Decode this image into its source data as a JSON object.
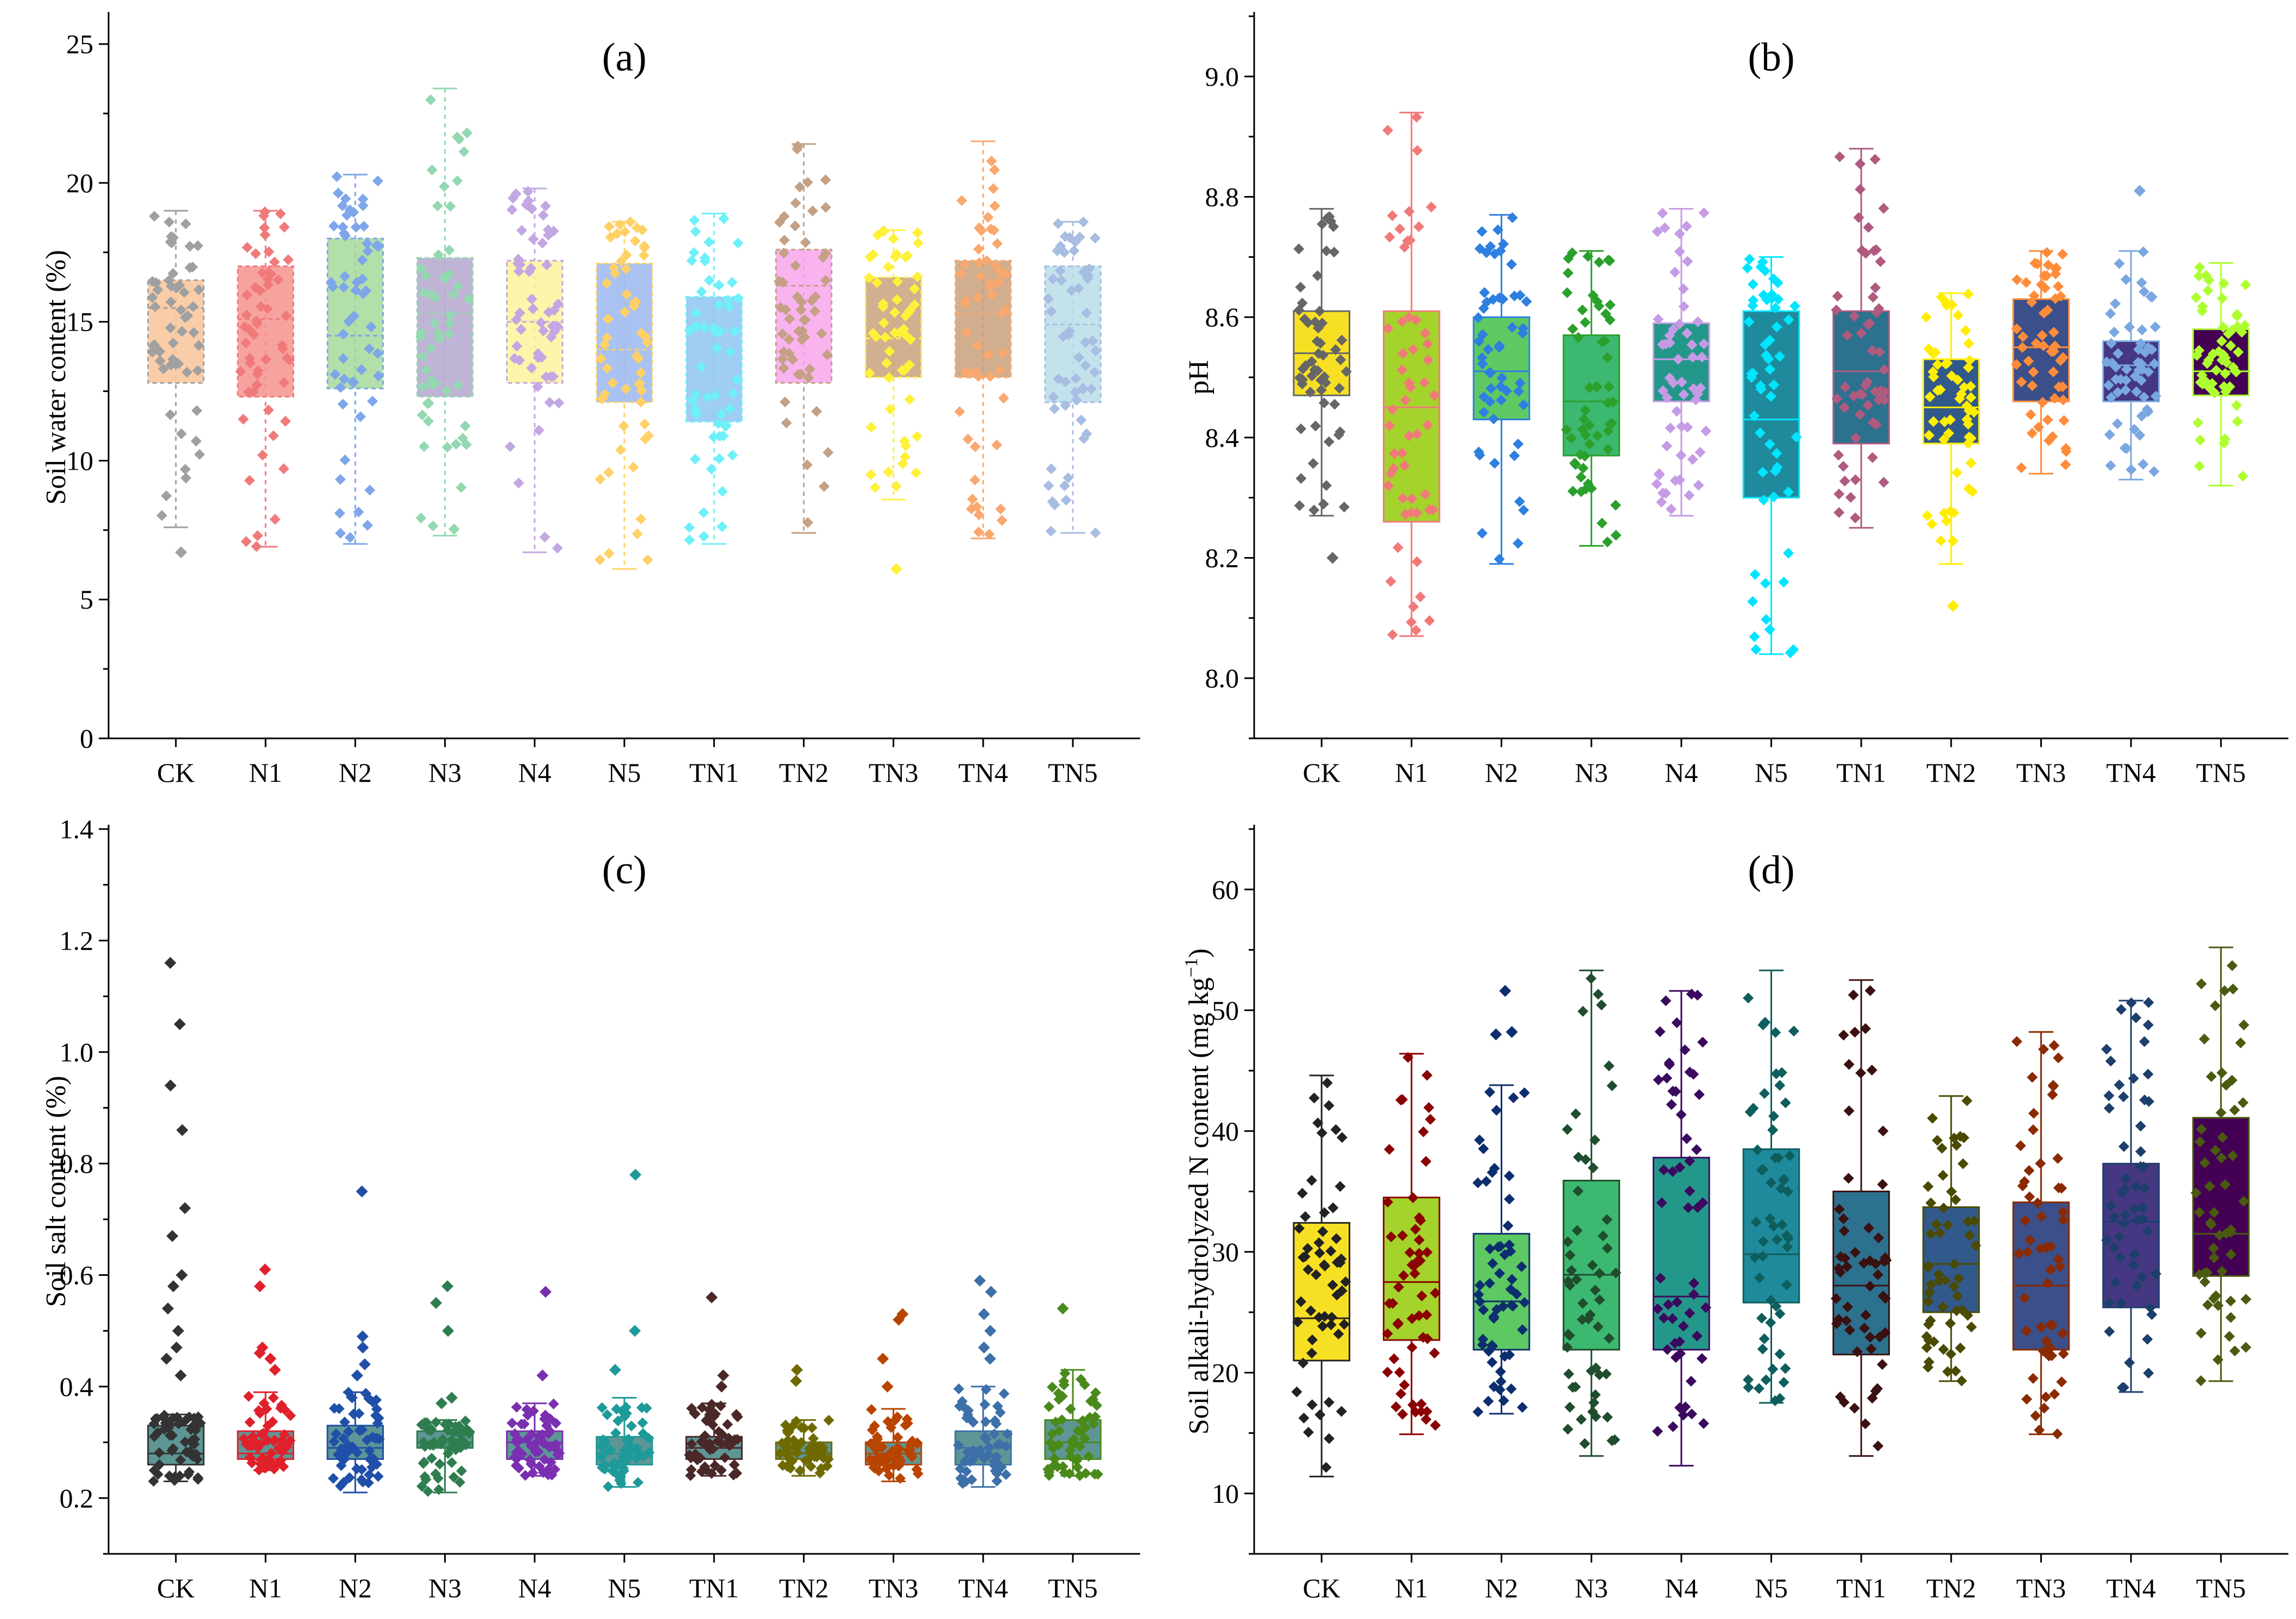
{
  "chart_data": [
    {
      "type": "box",
      "panel_label": "(a)",
      "ylabel": "Soil water content (%)",
      "ylim": [
        0,
        26
      ],
      "yticks": [
        0,
        5,
        10,
        15,
        20,
        25
      ],
      "ytick_labels": [
        "0",
        "5",
        "10",
        "15",
        "20",
        "25"
      ],
      "categories": [
        "CK",
        "N1",
        "N2",
        "N3",
        "N4",
        "N5",
        "TN1",
        "TN2",
        "TN3",
        "TN4",
        "TN5"
      ],
      "colors": [
        "#f9c49a",
        "#f5938f",
        "#a6d99a",
        "#b4a7cf",
        "#fbf39b",
        "#9ab7ef",
        "#8ec4f2",
        "#f8a6ec",
        "#c9a27e",
        "#c8a07a",
        "#b9dde9"
      ],
      "point_colors": [
        "#a0a0a0",
        "#f07a7a",
        "#7ea6ea",
        "#93d8b0",
        "#c3a7e2",
        "#ffd166",
        "#6ef0f8",
        "#c4a084",
        "#fff03a",
        "#f9a86f",
        "#a7bde2"
      ],
      "q1": [
        12.8,
        12.3,
        12.6,
        12.3,
        12.8,
        12.1,
        11.4,
        12.8,
        13.0,
        13.0,
        12.1
      ],
      "median": [
        15.5,
        15.1,
        14.5,
        15.3,
        15.0,
        14.0,
        14.7,
        16.3,
        14.4,
        15.3,
        14.9
      ],
      "q3": [
        16.5,
        17.0,
        18.0,
        17.3,
        17.2,
        17.1,
        15.9,
        17.6,
        16.6,
        17.2,
        17.0
      ],
      "whisker_low": [
        7.6,
        6.9,
        7.0,
        7.3,
        6.7,
        6.1,
        7.0,
        7.4,
        8.6,
        7.2,
        7.4
      ],
      "whisker_high": [
        19.0,
        19.0,
        20.3,
        23.4,
        19.8,
        18.6,
        18.9,
        21.4,
        18.3,
        21.5,
        18.6
      ],
      "outliers": [
        [
          6.7
        ],
        [],
        [],
        [],
        [],
        [],
        [],
        [],
        [
          6.1
        ],
        [],
        []
      ],
      "box_style": "translucent-dashed"
    },
    {
      "type": "box",
      "panel_label": "(b)",
      "ylabel": "pH",
      "ylim": [
        7.9,
        9.1
      ],
      "yticks": [
        8.0,
        8.2,
        8.4,
        8.6,
        8.8,
        9.0
      ],
      "ytick_labels": [
        "8.0",
        "8.2",
        "8.4",
        "8.6",
        "8.8",
        "9.0"
      ],
      "categories": [
        "CK",
        "N1",
        "N2",
        "N3",
        "N4",
        "N5",
        "TN1",
        "TN2",
        "TN3",
        "TN4",
        "TN5"
      ],
      "colors": [
        "#f7e024",
        "#a4d32b",
        "#5ec962",
        "#3cb870",
        "#23988a",
        "#1f8a9c",
        "#2c718e",
        "#31598b",
        "#3b4f8a",
        "#453781",
        "#440154"
      ],
      "point_colors": [
        "#666666",
        "#f07a7a",
        "#2e7fe0",
        "#2ca02c",
        "#c59be6",
        "#00e5ff",
        "#b05a80",
        "#ffee00",
        "#ff8c3a",
        "#7aa7e0",
        "#adff2f"
      ],
      "q1": [
        8.47,
        8.26,
        8.43,
        8.37,
        8.46,
        8.3,
        8.39,
        8.39,
        8.46,
        8.46,
        8.47
      ],
      "median": [
        8.54,
        8.45,
        8.51,
        8.46,
        8.53,
        8.43,
        8.51,
        8.45,
        8.55,
        8.52,
        8.51
      ],
      "q3": [
        8.61,
        8.61,
        8.6,
        8.57,
        8.59,
        8.61,
        8.61,
        8.53,
        8.63,
        8.56,
        8.58
      ],
      "whisker_low": [
        8.27,
        8.07,
        8.19,
        8.22,
        8.27,
        8.04,
        8.25,
        8.19,
        8.34,
        8.33,
        8.32
      ],
      "whisker_high": [
        8.78,
        8.94,
        8.77,
        8.71,
        8.78,
        8.7,
        8.88,
        8.64,
        8.71,
        8.71,
        8.69
      ],
      "outliers": [
        [
          8.2
        ],
        [],
        [],
        [],
        [],
        [],
        [],
        [
          8.12
        ],
        [],
        [
          8.81
        ],
        []
      ],
      "box_style": "solid"
    },
    {
      "type": "box",
      "panel_label": "(c)",
      "ylabel": "Soil salt content (%)",
      "ylim": [
        0.1,
        1.4
      ],
      "yticks": [
        0.2,
        0.4,
        0.6,
        0.8,
        1.0,
        1.2,
        1.4
      ],
      "ytick_labels": [
        "0.2",
        "0.4",
        "0.6",
        "0.8",
        "1.0",
        "1.2",
        "1.4"
      ],
      "categories": [
        "CK",
        "N1",
        "N2",
        "N3",
        "N4",
        "N5",
        "TN1",
        "TN2",
        "TN3",
        "TN4",
        "TN5"
      ],
      "colors": [
        "#5e9696",
        "#5e9696",
        "#5e9696",
        "#5e9696",
        "#5e9696",
        "#5e9696",
        "#5e9696",
        "#5e9696",
        "#5e9696",
        "#5e9696",
        "#5e9696"
      ],
      "point_colors": [
        "#333333",
        "#e0202a",
        "#1f4fa8",
        "#2e7d4f",
        "#7a2fb0",
        "#1f9a9a",
        "#4a2828",
        "#6e6a00",
        "#b84400",
        "#3d6fa8",
        "#4a8a1a"
      ],
      "q1": [
        0.26,
        0.27,
        0.27,
        0.29,
        0.27,
        0.26,
        0.27,
        0.27,
        0.26,
        0.26,
        0.27
      ],
      "median": [
        0.28,
        0.28,
        0.29,
        0.3,
        0.3,
        0.28,
        0.29,
        0.28,
        0.28,
        0.29,
        0.3
      ],
      "q3": [
        0.33,
        0.32,
        0.33,
        0.32,
        0.32,
        0.31,
        0.31,
        0.3,
        0.3,
        0.32,
        0.34
      ],
      "whisker_low": [
        0.23,
        0.25,
        0.21,
        0.21,
        0.24,
        0.22,
        0.24,
        0.24,
        0.23,
        0.22,
        0.24
      ],
      "whisker_high": [
        0.35,
        0.39,
        0.39,
        0.34,
        0.37,
        0.38,
        0.37,
        0.34,
        0.36,
        0.4,
        0.43
      ],
      "outliers": [
        [
          1.16,
          1.05,
          0.94,
          0.86,
          0.72,
          0.67,
          0.6,
          0.58,
          0.54,
          0.5,
          0.47,
          0.45,
          0.42
        ],
        [
          0.61,
          0.58,
          0.47,
          0.46,
          0.45,
          0.43
        ],
        [
          0.75,
          0.49,
          0.47,
          0.44,
          0.42
        ],
        [
          0.58,
          0.55,
          0.5,
          0.38,
          0.37
        ],
        [
          0.57,
          0.42
        ],
        [
          0.78,
          0.5,
          0.43
        ],
        [
          0.56,
          0.42,
          0.4
        ],
        [
          0.43,
          0.41
        ],
        [
          0.53,
          0.52,
          0.45,
          0.4
        ],
        [
          0.59,
          0.57,
          0.53,
          0.5,
          0.47,
          0.45
        ],
        [
          0.54
        ]
      ],
      "box_style": "solid"
    },
    {
      "type": "box",
      "panel_label": "(d)",
      "ylabel": "Soil alkali-hydrolyzed N content (mg kg",
      "ylabel_sup": "−1",
      "ylabel_end": ")",
      "ylim": [
        5,
        65
      ],
      "yticks": [
        10,
        20,
        30,
        40,
        50,
        60
      ],
      "ytick_labels": [
        "10",
        "20",
        "30",
        "40",
        "50",
        "60"
      ],
      "categories": [
        "CK",
        "N1",
        "N2",
        "N3",
        "N4",
        "N5",
        "TN1",
        "TN2",
        "TN3",
        "TN4",
        "TN5"
      ],
      "colors": [
        "#f7e024",
        "#a4d32b",
        "#5ec962",
        "#3cb870",
        "#23988a",
        "#1f8a9c",
        "#2c718e",
        "#31598b",
        "#3b4f8a",
        "#453781",
        "#440154"
      ],
      "point_colors": [
        "#222222",
        "#8b0000",
        "#0d2e6e",
        "#1f4d2e",
        "#3b0a5e",
        "#0e5e5e",
        "#3a1010",
        "#4a4a00",
        "#8a2a00",
        "#1c3f6b",
        "#4a5a10"
      ],
      "q1": [
        21.0,
        22.7,
        21.9,
        21.9,
        21.9,
        25.8,
        21.5,
        25.0,
        21.9,
        25.4,
        28.0
      ],
      "median": [
        24.5,
        27.5,
        25.9,
        28.1,
        26.3,
        29.8,
        27.2,
        29.0,
        27.2,
        32.5,
        31.5
      ],
      "q3": [
        32.4,
        34.5,
        31.5,
        35.9,
        37.8,
        38.5,
        35.0,
        33.7,
        34.1,
        37.3,
        41.1
      ],
      "whisker_low": [
        11.4,
        14.9,
        16.6,
        13.1,
        12.3,
        17.5,
        13.1,
        19.3,
        14.9,
        18.4,
        19.3
      ],
      "whisker_high": [
        44.6,
        46.4,
        43.8,
        53.3,
        51.6,
        53.3,
        52.5,
        42.9,
        48.2,
        50.8,
        55.2
      ],
      "outliers": [
        [],
        [],
        [
          51.6,
          48.2,
          48.0
        ],
        [],
        [],
        [],
        [],
        [],
        [],
        [],
        []
      ],
      "box_style": "solid"
    }
  ]
}
